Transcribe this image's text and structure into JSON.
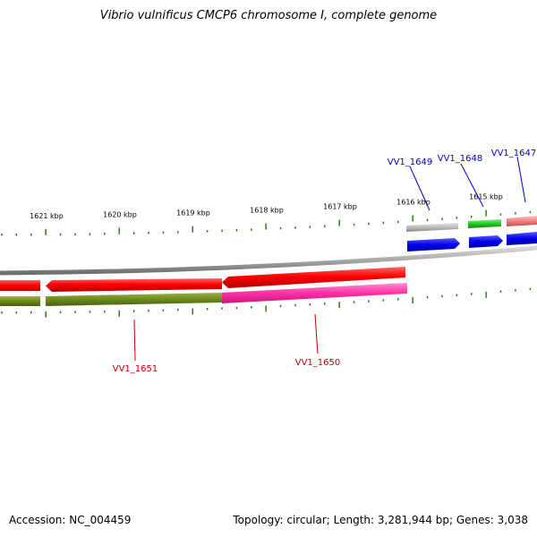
{
  "title": "Vibrio vulnificus CMCP6 chromosome I, complete genome",
  "footer": {
    "accession": "Accession: NC_004459",
    "summary": "Topology: circular; Length: 3,281,944 bp; Genes: 3,038"
  },
  "scale_ticks": [
    "1621 kbp",
    "1620 kbp",
    "1619 kbp",
    "1618 kbp",
    "1617 kbp",
    "1616 kbp",
    "1615 kbp"
  ],
  "genes_top": [
    {
      "label": "VV1_1649",
      "color": "#0000cc"
    },
    {
      "label": "VV1_1648",
      "color": "#0000cc"
    },
    {
      "label": "VV1_1647",
      "color": "#0000cc"
    }
  ],
  "genes_bottom": [
    {
      "label": "VV1_1651",
      "color": "#cc0000"
    },
    {
      "label": "VV1_1650",
      "color": "#cc0000"
    }
  ],
  "colors": {
    "backbone": "#8a8a8a",
    "scale_green": "#2e7d16",
    "cds_red": "#ff0000",
    "gene_olive": "#6e8a1a",
    "gene_pink": "#ff33aa",
    "gene_gray": "#b0b0b0",
    "gene_green": "#22cc22",
    "gene_salmon": "#f08080",
    "cds_blue": "#0000ee"
  }
}
